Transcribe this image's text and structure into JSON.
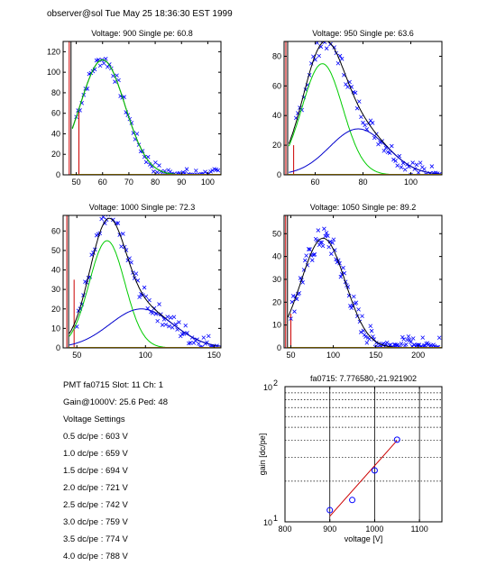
{
  "header": "observer@sol  Tue May 25 18:36:30 EST 1999",
  "info": {
    "line1": "PMT fa0715 Slot: 11 Ch: 1",
    "line2": "Gain@1000V: 25.6 Ped: 48",
    "line3": "Voltage Settings",
    "settings": [
      "0.5 dc/pe : 603 V",
      "1.0 dc/pe : 659 V",
      "1.5 dc/pe : 694 V",
      "2.0 dc/pe : 721 V",
      "2.5 dc/pe : 742 V",
      "3.0 dc/pe : 759 V",
      "3.5 dc/pe : 774 V",
      "4.0 dc/pe : 788 V"
    ]
  },
  "colors": {
    "data": "#0000ff",
    "total_fit": "#000000",
    "pe1_fit": "#00cc00",
    "pe2_fit": "#0000cc",
    "pedestal": "#cc0000",
    "gain_fit": "#cc0000",
    "axes": "#000000"
  },
  "chart_data": [
    {
      "id": "p1",
      "type": "scatter",
      "title": "Voltage: 900 Single pe: 60.8",
      "xlim": [
        45,
        105
      ],
      "ylim": [
        0,
        130
      ],
      "xticks": [
        50,
        60,
        70,
        80,
        90,
        100
      ],
      "yticks": [
        0,
        20,
        40,
        60,
        80,
        100,
        120
      ],
      "ped": {
        "x": 48,
        "h": 130
      },
      "ped2": {
        "x": 51,
        "h": 62
      },
      "fit": [
        {
          "c": "total",
          "g": [
            [
              60,
              8.5,
              112
            ],
            [
              30,
              12,
              2
            ]
          ]
        },
        {
          "c": "pe1",
          "g": [
            [
              60,
              8.5,
              112
            ]
          ]
        }
      ],
      "noise": {
        "x0": 50,
        "x1": 104,
        "step": 0.7,
        "amp": 6
      }
    },
    {
      "id": "p2",
      "type": "scatter",
      "title": "Voltage: 950 Single pe: 63.6",
      "xlim": [
        47,
        113
      ],
      "ylim": [
        0,
        90
      ],
      "xticks": [
        60,
        80,
        100
      ],
      "yticks": [
        0,
        20,
        40,
        60,
        80
      ],
      "ped": {
        "x": 48.5,
        "h": 90
      },
      "ped2": {
        "x": 51,
        "h": 20
      },
      "fit": [
        {
          "c": "total",
          "g": [
            [
              63,
              8.5,
              75
            ],
            [
              78,
              12,
              31
            ]
          ]
        },
        {
          "c": "pe1",
          "g": [
            [
              63,
              8.5,
              75
            ]
          ]
        },
        {
          "c": "pe2",
          "g": [
            [
              78,
              12,
              31
            ]
          ]
        }
      ],
      "noise": {
        "x0": 52,
        "x1": 112,
        "step": 0.8,
        "amp": 6
      }
    },
    {
      "id": "p3",
      "type": "scatter",
      "title": "Voltage: 1000 Single pe: 72.3",
      "xlim": [
        40,
        155
      ],
      "ylim": [
        0,
        68
      ],
      "xticks": [
        50,
        100,
        150
      ],
      "yticks": [
        0,
        10,
        20,
        30,
        40,
        50,
        60
      ],
      "ped": {
        "x": 44,
        "h": 68
      },
      "ped2": {
        "x": 48,
        "h": 35
      },
      "fit": [
        {
          "c": "total",
          "g": [
            [
              72,
              13,
              55
            ],
            [
              97,
              23,
              20
            ]
          ]
        },
        {
          "c": "pe1",
          "g": [
            [
              72,
              13,
              55
            ]
          ]
        },
        {
          "c": "pe2",
          "g": [
            [
              97,
              23,
              20
            ]
          ]
        }
      ],
      "noise": {
        "x0": 50,
        "x1": 152,
        "step": 1.2,
        "amp": 5
      }
    },
    {
      "id": "p4",
      "type": "scatter",
      "title": "Voltage: 1050 Single pe: 89.2",
      "xlim": [
        42,
        228
      ],
      "ylim": [
        0,
        58
      ],
      "xticks": [
        50,
        100,
        150,
        200
      ],
      "yticks": [
        0,
        10,
        20,
        30,
        40,
        50
      ],
      "ped": {
        "x": 46,
        "h": 58
      },
      "ped2": {
        "x": 50,
        "h": 15
      },
      "fit": [
        {
          "c": "total",
          "g": [
            [
              88,
              26,
              48
            ]
          ]
        }
      ],
      "noise": {
        "x0": 50,
        "x1": 226,
        "step": 1.4,
        "amp": 5
      }
    },
    {
      "id": "p5",
      "type": "scatter",
      "title": "fa0715: 7.776580,-21.921902",
      "xlabel": "voltage [V]",
      "ylabel": "gain [dc/pe]",
      "xlim": [
        800,
        1150
      ],
      "ylim": [
        10,
        100
      ],
      "yscale": "log",
      "xticks": [
        800,
        900,
        1000,
        1100
      ],
      "yticks_major": [
        10,
        100
      ],
      "ytick_labels": [
        "10",
        "10"
      ],
      "ytick_exp": [
        "1",
        "2"
      ],
      "ygrid": [
        20,
        30,
        40,
        50,
        60,
        70,
        80,
        90
      ],
      "xgrid": [
        900,
        1000,
        1100
      ],
      "points": [
        [
          900,
          12.2
        ],
        [
          950,
          14.5
        ],
        [
          1000,
          24.0
        ],
        [
          1050,
          40.5
        ]
      ],
      "fitline": [
        [
          900,
          11.0
        ],
        [
          1050,
          40.0
        ]
      ]
    }
  ]
}
